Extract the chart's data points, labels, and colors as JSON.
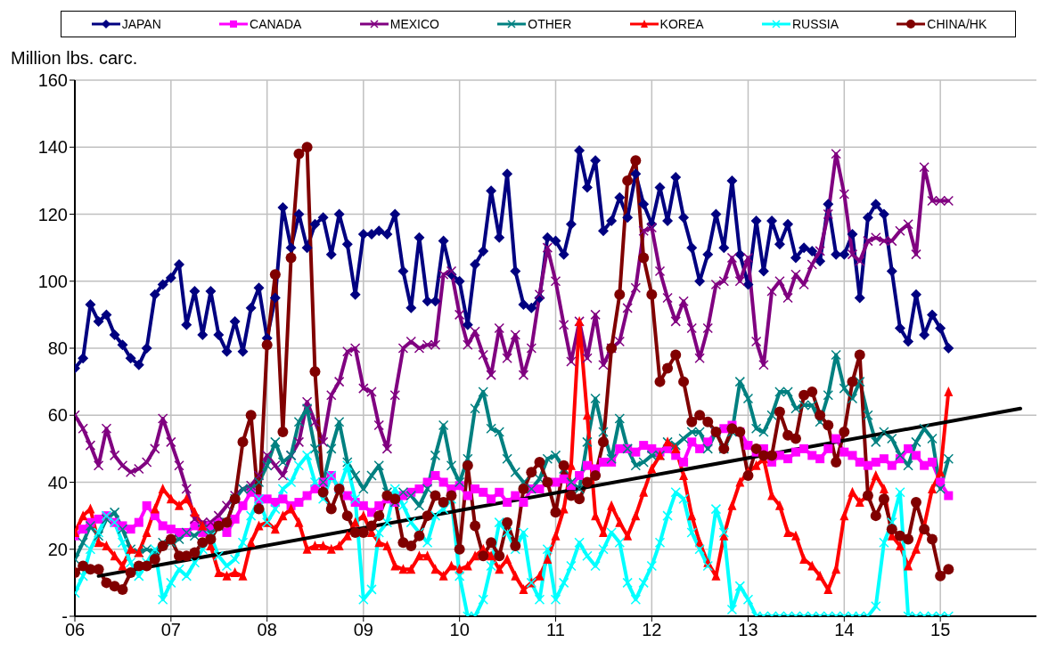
{
  "chart_data": {
    "type": "line",
    "ylabel": "Million lbs. carc.",
    "legend": "top",
    "grid": true,
    "x": [
      "2006-01",
      "2006-02",
      "2006-03",
      "2006-04",
      "2006-05",
      "2006-06",
      "2006-07",
      "2006-08",
      "2006-09",
      "2006-10",
      "2006-11",
      "2006-12",
      "2007-01",
      "2007-02",
      "2007-03",
      "2007-04",
      "2007-05",
      "2007-06",
      "2007-07",
      "2007-08",
      "2007-09",
      "2007-10",
      "2007-11",
      "2007-12",
      "2008-01",
      "2008-02",
      "2008-03",
      "2008-04",
      "2008-05",
      "2008-06",
      "2008-07",
      "2008-08",
      "2008-09",
      "2008-10",
      "2008-11",
      "2008-12",
      "2009-01",
      "2009-02",
      "2009-03",
      "2009-04",
      "2009-05",
      "2009-06",
      "2009-07",
      "2009-08",
      "2009-09",
      "2009-10",
      "2009-11",
      "2009-12",
      "2010-01",
      "2010-02",
      "2010-03",
      "2010-04",
      "2010-05",
      "2010-06",
      "2010-07",
      "2010-08",
      "2010-09",
      "2010-10",
      "2010-11",
      "2010-12",
      "2011-01",
      "2011-02",
      "2011-03",
      "2011-04",
      "2011-05",
      "2011-06",
      "2011-07",
      "2011-08",
      "2011-09",
      "2011-10",
      "2011-11",
      "2011-12",
      "2012-01",
      "2012-02",
      "2012-03",
      "2012-04",
      "2012-05",
      "2012-06",
      "2012-07",
      "2012-08",
      "2012-09",
      "2012-10",
      "2012-11",
      "2012-12",
      "2013-01",
      "2013-02",
      "2013-03",
      "2013-04",
      "2013-05",
      "2013-06",
      "2013-07",
      "2013-08",
      "2013-09",
      "2013-10",
      "2013-11",
      "2013-12",
      "2014-01",
      "2014-02",
      "2014-03",
      "2014-04",
      "2014-05",
      "2014-06",
      "2014-07",
      "2014-08",
      "2014-09",
      "2014-10",
      "2014-11",
      "2014-12",
      "2015-01",
      "2015-02"
    ],
    "xlim": [
      "2006-01",
      "2016-01"
    ],
    "xticks": [
      {
        "value": "2006-01",
        "label": "06"
      },
      {
        "value": "2007-01",
        "label": "07"
      },
      {
        "value": "2008-01",
        "label": "08"
      },
      {
        "value": "2009-01",
        "label": "09"
      },
      {
        "value": "2010-01",
        "label": "10"
      },
      {
        "value": "2011-01",
        "label": "11"
      },
      {
        "value": "2012-01",
        "label": "12"
      },
      {
        "value": "2013-01",
        "label": "13"
      },
      {
        "value": "2014-01",
        "label": "14"
      },
      {
        "value": "2015-01",
        "label": "15"
      }
    ],
    "ylim": [
      0,
      160
    ],
    "yticks": [
      {
        "value": 0,
        "label": "-"
      },
      20,
      40,
      60,
      80,
      100,
      120,
      140,
      160
    ],
    "series": [
      {
        "name": "JAPAN",
        "color": "#000080",
        "marker": "diamond",
        "values": [
          74,
          77,
          93,
          88,
          90,
          84,
          81,
          77,
          75,
          80,
          96,
          99,
          101,
          105,
          87,
          97,
          84,
          97,
          84,
          79,
          88,
          79,
          92,
          98,
          83,
          95,
          122,
          110,
          120,
          110,
          117,
          119,
          108,
          120,
          111,
          96,
          114,
          114,
          115,
          114,
          120,
          103,
          92,
          113,
          94,
          94,
          112,
          102,
          100,
          87,
          105,
          109,
          127,
          113,
          132,
          103,
          93,
          92,
          95,
          113,
          112,
          108,
          117,
          139,
          128,
          136,
          115,
          118,
          125,
          119,
          132,
          123,
          117,
          128,
          118,
          131,
          119,
          110,
          100,
          108,
          120,
          110,
          130,
          108,
          99,
          118,
          103,
          118,
          111,
          117,
          107,
          110,
          109,
          106,
          123,
          108,
          108,
          114,
          95,
          119,
          123,
          120,
          103,
          86,
          82,
          96,
          84,
          90,
          86,
          80
        ]
      },
      {
        "name": "CANADA",
        "color": "#ff00ff",
        "marker": "square",
        "values": [
          24,
          26,
          28,
          29,
          30,
          28,
          27,
          26,
          28,
          33,
          30,
          27,
          26,
          25,
          25,
          27,
          25,
          27,
          28,
          25,
          29,
          33,
          37,
          35,
          35,
          34,
          35,
          33,
          34,
          36,
          38,
          40,
          42,
          38,
          36,
          34,
          33,
          31,
          33,
          35,
          34,
          36,
          37,
          38,
          40,
          42,
          40,
          38,
          39,
          36,
          38,
          37,
          35,
          37,
          34,
          36,
          34,
          38,
          38,
          40,
          40,
          41,
          39,
          42,
          45,
          44,
          46,
          46,
          50,
          50,
          49,
          51,
          50,
          49,
          50,
          48,
          46,
          52,
          50,
          52,
          55,
          56,
          57,
          55,
          51,
          49,
          50,
          46,
          48,
          47,
          49,
          50,
          48,
          47,
          50,
          53,
          49,
          48,
          46,
          45,
          46,
          47,
          45,
          47,
          50,
          48,
          45,
          46,
          40,
          36
        ]
      },
      {
        "name": "MEXICO",
        "color": "#800080",
        "marker": "cross",
        "values": [
          60,
          56,
          51,
          45,
          56,
          48,
          45,
          43,
          44,
          46,
          50,
          59,
          52,
          45,
          38,
          29,
          28,
          28,
          30,
          33,
          36,
          38,
          39,
          42,
          48,
          45,
          42,
          48,
          52,
          64,
          58,
          52,
          66,
          70,
          79,
          80,
          68,
          67,
          57,
          50,
          66,
          80,
          82,
          80,
          81,
          81,
          102,
          103,
          90,
          81,
          85,
          78,
          72,
          86,
          77,
          84,
          72,
          80,
          96,
          110,
          100,
          87,
          76,
          88,
          77,
          90,
          75,
          80,
          82,
          92,
          98,
          115,
          116,
          103,
          95,
          88,
          94,
          86,
          77,
          86,
          99,
          100,
          107,
          100,
          107,
          82,
          75,
          97,
          100,
          95,
          102,
          99,
          105,
          109,
          120,
          138,
          126,
          108,
          106,
          112,
          113,
          112,
          112,
          115,
          117,
          108,
          134,
          124,
          124,
          124
        ]
      },
      {
        "name": "OTHER",
        "color": "#008080",
        "marker": "cross",
        "values": [
          17,
          22,
          27,
          24,
          29,
          31,
          26,
          20,
          19,
          20,
          19,
          22,
          22,
          23,
          25,
          24,
          26,
          25,
          27,
          28,
          35,
          38,
          38,
          40,
          45,
          52,
          46,
          48,
          58,
          62,
          50,
          40,
          50,
          58,
          46,
          42,
          38,
          42,
          45,
          37,
          34,
          37,
          36,
          33,
          38,
          48,
          57,
          45,
          40,
          47,
          62,
          67,
          56,
          55,
          47,
          43,
          40,
          38,
          41,
          47,
          48,
          44,
          40,
          38,
          52,
          65,
          55,
          47,
          59,
          50,
          45,
          46,
          48,
          48,
          52,
          51,
          53,
          55,
          55,
          50,
          55,
          50,
          55,
          70,
          65,
          56,
          55,
          60,
          67,
          67,
          62,
          63,
          63,
          58,
          66,
          78,
          68,
          65,
          70,
          60,
          52,
          55,
          53,
          48,
          45,
          52,
          56,
          53,
          38,
          47
        ]
      },
      {
        "name": "KOREA",
        "color": "#ff0000",
        "marker": "triangle",
        "values": [
          25,
          30,
          32,
          22,
          21,
          18,
          15,
          20,
          19,
          25,
          32,
          38,
          35,
          33,
          35,
          31,
          27,
          21,
          13,
          12,
          13,
          12,
          22,
          27,
          28,
          26,
          30,
          32,
          28,
          20,
          21,
          21,
          20,
          21,
          24,
          28,
          30,
          25,
          22,
          21,
          15,
          14,
          14,
          18,
          18,
          14,
          12,
          15,
          14,
          15,
          18,
          20,
          18,
          14,
          17,
          12,
          8,
          10,
          12,
          17,
          24,
          32,
          45,
          88,
          60,
          30,
          25,
          33,
          28,
          24,
          30,
          37,
          44,
          48,
          52,
          50,
          42,
          30,
          22,
          16,
          12,
          24,
          33,
          40,
          43,
          45,
          47,
          36,
          33,
          25,
          24,
          17,
          15,
          12,
          8,
          14,
          30,
          37,
          34,
          36,
          42,
          38,
          24,
          21,
          15,
          20,
          27,
          38,
          43,
          67
        ]
      },
      {
        "name": "RUSSIA",
        "color": "#00ffff",
        "marker": "cross",
        "values": [
          7,
          12,
          20,
          25,
          30,
          28,
          22,
          16,
          12,
          16,
          20,
          5,
          10,
          14,
          12,
          16,
          20,
          24,
          18,
          15,
          17,
          22,
          30,
          35,
          28,
          32,
          38,
          40,
          45,
          48,
          40,
          35,
          42,
          38,
          45,
          35,
          5,
          8,
          25,
          28,
          38,
          33,
          28,
          25,
          22,
          30,
          32,
          35,
          12,
          0,
          0,
          5,
          15,
          28,
          25,
          20,
          25,
          10,
          5,
          20,
          5,
          10,
          15,
          22,
          18,
          15,
          20,
          25,
          22,
          10,
          5,
          10,
          15,
          22,
          30,
          37,
          35,
          25,
          20,
          15,
          32,
          25,
          2,
          9,
          5,
          0,
          0,
          0,
          0,
          0,
          0,
          0,
          0,
          0,
          0,
          0,
          0,
          0,
          0,
          0,
          3,
          22,
          28,
          37,
          0,
          0,
          0,
          0,
          0,
          0
        ]
      },
      {
        "name": "CHINA/HK",
        "color": "#800000",
        "marker": "circle",
        "values": [
          13,
          15,
          14,
          14,
          10,
          9,
          8,
          13,
          15,
          15,
          17,
          21,
          23,
          18,
          18,
          19,
          22,
          23,
          27,
          28,
          35,
          52,
          60,
          32,
          81,
          102,
          55,
          107,
          138,
          140,
          73,
          37,
          32,
          38,
          30,
          25,
          25,
          27,
          30,
          36,
          35,
          22,
          21,
          24,
          30,
          36,
          34,
          36,
          20,
          45,
          27,
          18,
          22,
          18,
          28,
          21,
          38,
          43,
          46,
          40,
          31,
          45,
          36,
          35,
          40,
          42,
          52,
          80,
          96,
          130,
          136,
          107,
          96,
          70,
          74,
          78,
          70,
          58,
          60,
          58,
          55,
          50,
          56,
          55,
          42,
          50,
          48,
          48,
          61,
          54,
          53,
          66,
          67,
          60,
          57,
          46,
          55,
          70,
          78,
          36,
          30,
          35,
          26,
          24,
          23,
          34,
          26,
          23,
          12,
          14
        ]
      },
      {
        "type": "line",
        "color": "#000000",
        "marker": "none",
        "x": [
          "2006-04",
          "2015-11"
        ],
        "values": [
          12,
          62
        ]
      }
    ]
  }
}
